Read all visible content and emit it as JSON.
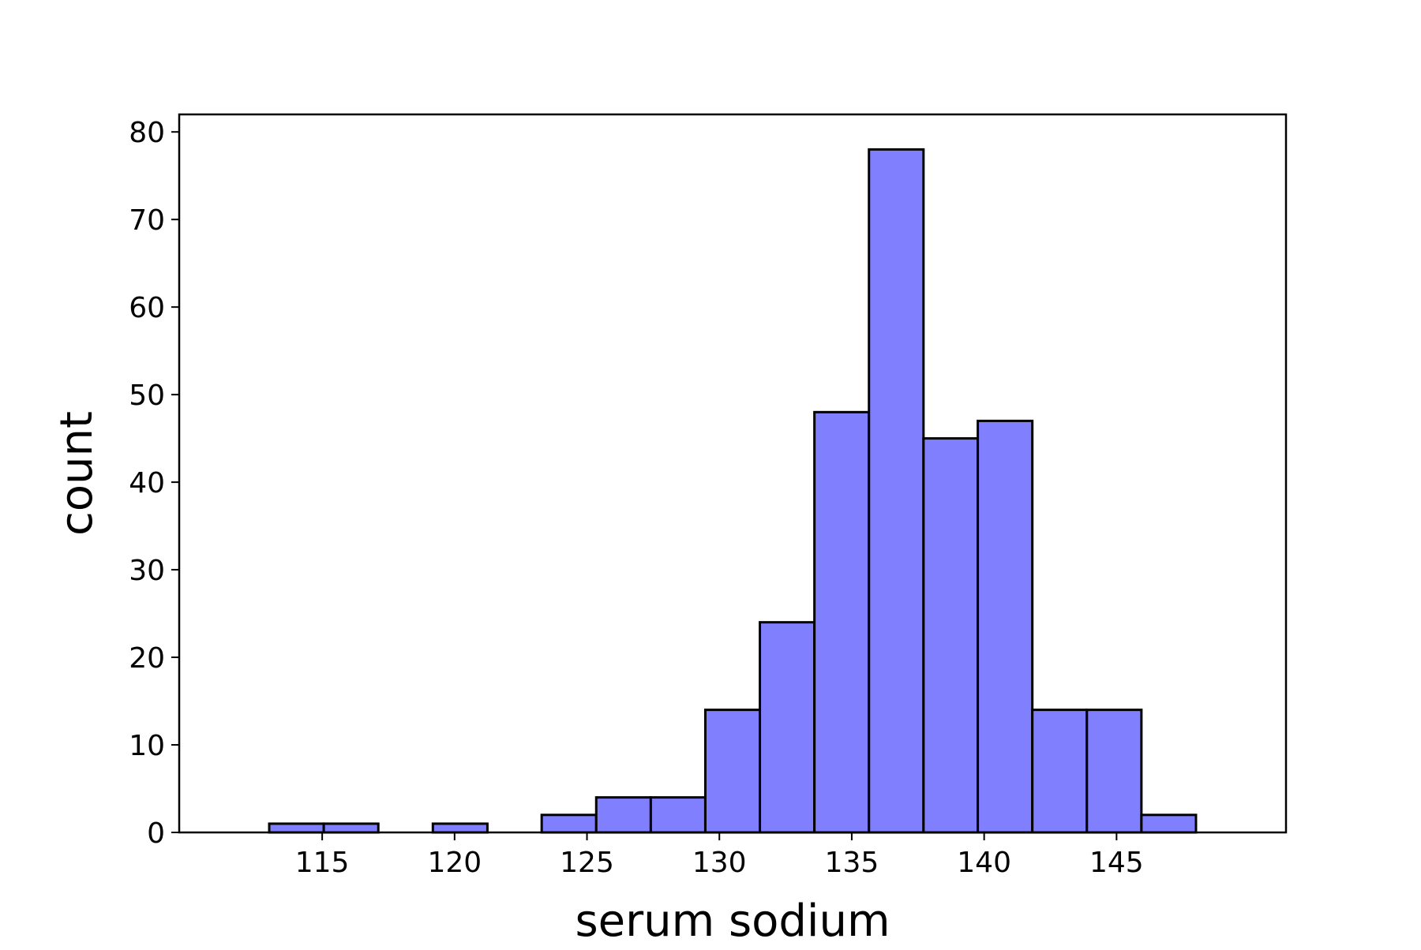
{
  "chart_data": {
    "type": "bar",
    "subtype": "histogram",
    "title": "",
    "xlabel": "serum sodium",
    "ylabel": "count",
    "xlim": [
      109.6,
      151.4
    ],
    "ylim": [
      0,
      82
    ],
    "xticks": [
      115,
      120,
      125,
      130,
      135,
      140,
      145
    ],
    "xtick_labels": [
      "115",
      "120",
      "125",
      "130",
      "135",
      "140",
      "145"
    ],
    "yticks": [
      0,
      10,
      20,
      30,
      40,
      50,
      60,
      70,
      80
    ],
    "ytick_labels": [
      "0",
      "10",
      "20",
      "30",
      "40",
      "50",
      "60",
      "70",
      "80"
    ],
    "grid": false,
    "bin_edges": [
      113,
      115.06,
      117.12,
      119.18,
      121.24,
      123.29,
      125.35,
      127.41,
      129.47,
      131.53,
      133.59,
      135.65,
      137.71,
      139.76,
      141.82,
      143.88,
      145.94,
      148
    ],
    "values": [
      1,
      1,
      0,
      1,
      0,
      2,
      4,
      4,
      14,
      24,
      48,
      78,
      45,
      47,
      14,
      14,
      2
    ],
    "bar_color": "#8080ff",
    "edge_color": "#000000"
  }
}
